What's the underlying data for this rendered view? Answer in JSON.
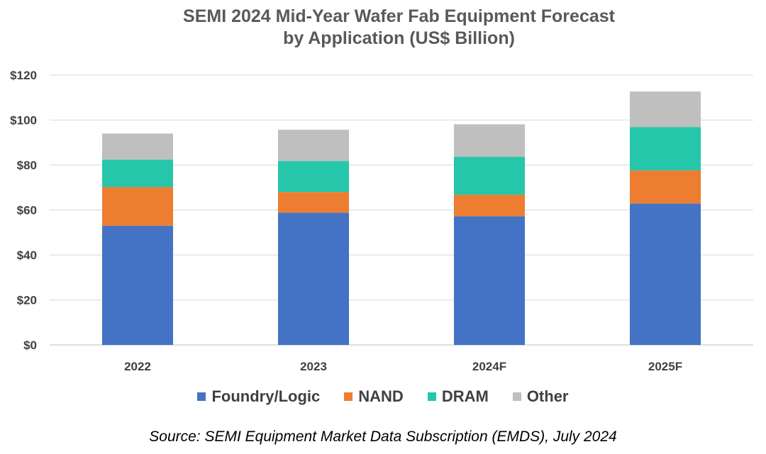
{
  "chart_data": {
    "type": "bar",
    "stacked": true,
    "title_line1": "SEMI 2024 Mid-Year Wafer Fab Equipment Forecast",
    "title_line2": "by Application (US$ Billion)",
    "categories": [
      "2022",
      "2023",
      "2024F",
      "2025F"
    ],
    "series": [
      {
        "name": "Foundry/Logic",
        "color": "#4472C4",
        "values": [
          53.0,
          58.8,
          57.2,
          62.9
        ]
      },
      {
        "name": "NAND",
        "color": "#ED7D31",
        "values": [
          17.2,
          9.2,
          9.6,
          14.7
        ]
      },
      {
        "name": "DRAM",
        "color": "#26C6AA",
        "values": [
          12.2,
          13.8,
          16.9,
          19.3
        ]
      },
      {
        "name": "Other",
        "color": "#BFBFBF",
        "values": [
          11.6,
          13.9,
          14.4,
          15.8
        ]
      }
    ],
    "ylim": [
      0,
      120
    ],
    "yticks": [
      "$0",
      "$20",
      "$40",
      "$60",
      "$80",
      "$100",
      "$120"
    ],
    "legend_position": "bottom",
    "grid": true
  },
  "source": {
    "text": "Source: SEMI Equipment Market Data Subscription (EMDS), ",
    "date": "July 2024"
  }
}
